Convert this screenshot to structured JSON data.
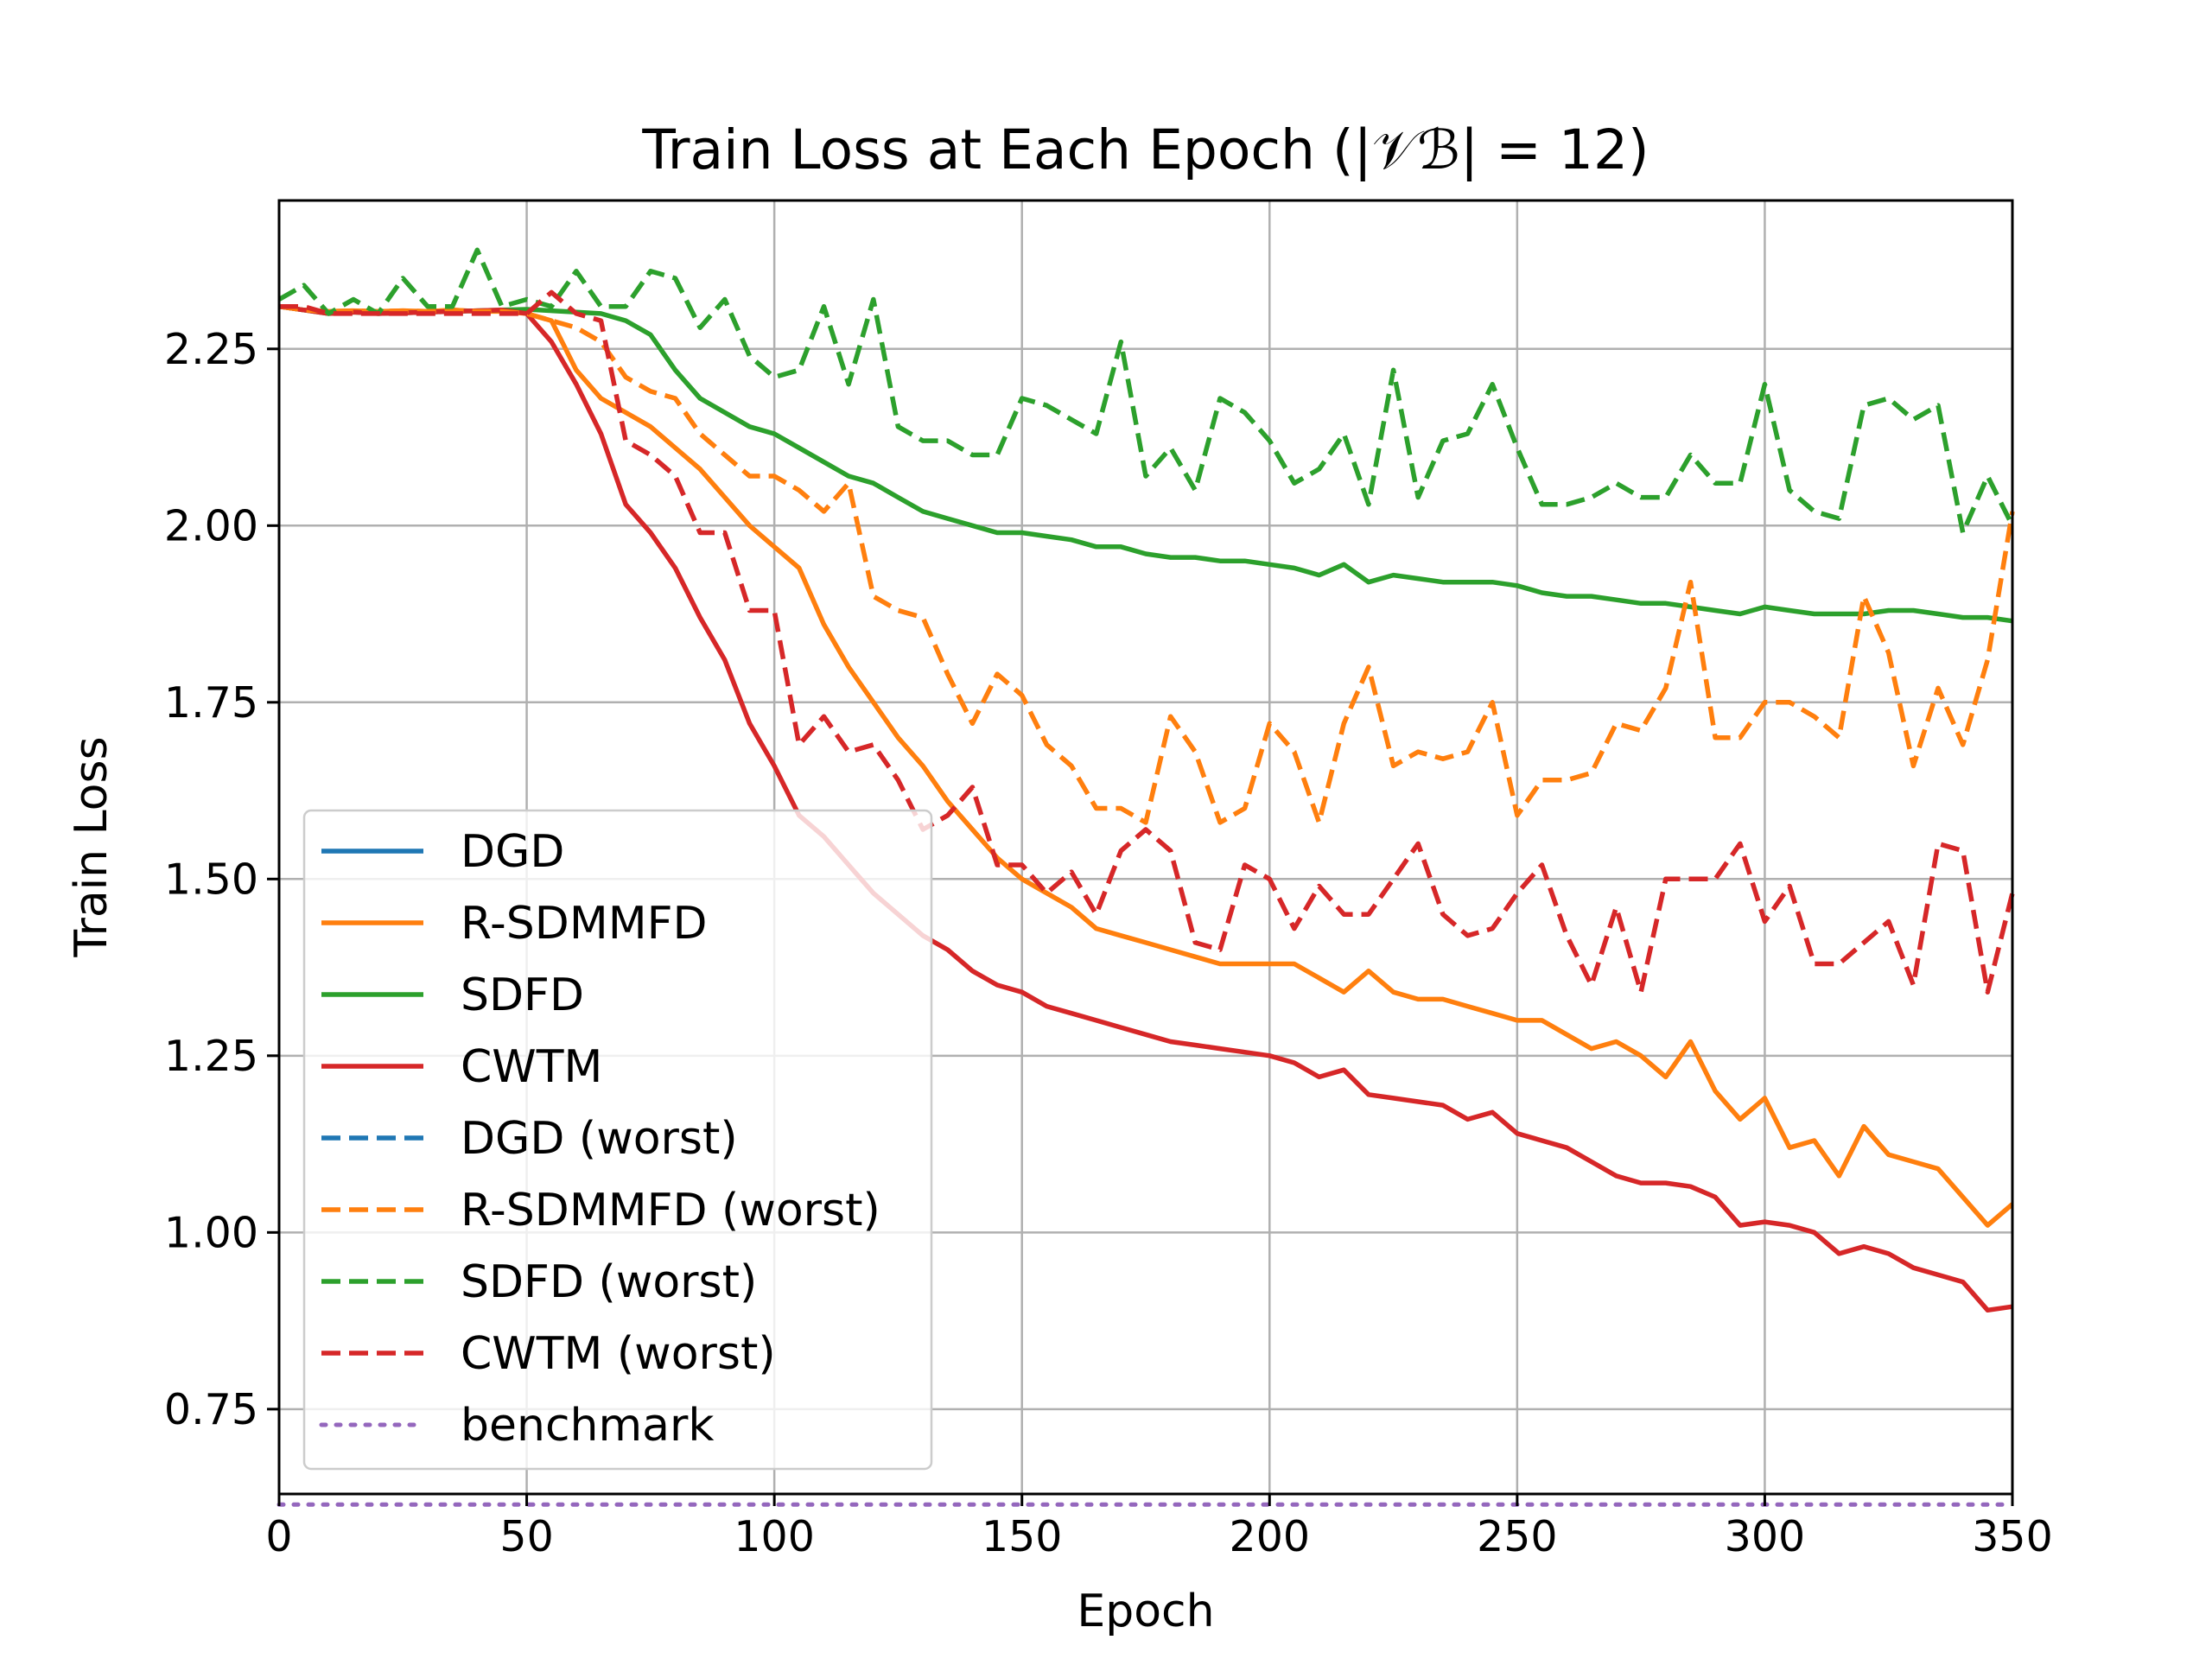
{
  "chart_data": {
    "type": "line",
    "title": "Train Loss at Each Epoch (|𝒱ℬ| = 12)",
    "xlabel": "Epoch",
    "ylabel": "Train Loss",
    "xlim": [
      0,
      350
    ],
    "ylim": [
      0.63,
      2.46
    ],
    "xticks": [
      0,
      50,
      100,
      150,
      200,
      250,
      300,
      350
    ],
    "yticks": [
      0.75,
      1.0,
      1.25,
      1.5,
      1.75,
      2.0,
      2.25
    ],
    "xtick_labels": [
      "0",
      "50",
      "100",
      "150",
      "200",
      "250",
      "300",
      "350"
    ],
    "ytick_labels": [
      "0.75",
      "1.00",
      "1.25",
      "1.50",
      "1.75",
      "2.00",
      "2.25"
    ],
    "grid": true,
    "legend_position": "lower-left",
    "series": [
      {
        "name": "DGD",
        "color": "#1f77b4",
        "style": "solid",
        "x": [],
        "y": []
      },
      {
        "name": "R-SDMMFD",
        "color": "#ff7f0e",
        "style": "solid",
        "x": [
          0,
          5,
          10,
          15,
          20,
          25,
          30,
          35,
          40,
          45,
          50,
          55,
          60,
          65,
          70,
          75,
          80,
          85,
          90,
          95,
          100,
          105,
          110,
          115,
          120,
          125,
          130,
          135,
          140,
          145,
          150,
          155,
          160,
          165,
          170,
          175,
          180,
          185,
          190,
          195,
          200,
          205,
          210,
          215,
          220,
          225,
          230,
          235,
          240,
          245,
          250,
          255,
          260,
          265,
          270,
          275,
          280,
          285,
          290,
          295,
          300,
          305,
          310,
          315,
          320,
          325,
          330,
          335,
          340,
          345,
          350
        ],
        "y": [
          2.31,
          2.305,
          2.303,
          2.304,
          2.303,
          2.304,
          2.303,
          2.305,
          2.303,
          2.303,
          2.3,
          2.29,
          2.22,
          2.18,
          2.16,
          2.14,
          2.11,
          2.08,
          2.04,
          2.0,
          1.97,
          1.94,
          1.86,
          1.8,
          1.75,
          1.7,
          1.66,
          1.61,
          1.57,
          1.53,
          1.5,
          1.48,
          1.46,
          1.43,
          1.42,
          1.41,
          1.4,
          1.39,
          1.38,
          1.38,
          1.38,
          1.38,
          1.36,
          1.34,
          1.37,
          1.34,
          1.33,
          1.33,
          1.32,
          1.31,
          1.3,
          1.3,
          1.28,
          1.26,
          1.27,
          1.25,
          1.22,
          1.27,
          1.2,
          1.16,
          1.19,
          1.12,
          1.13,
          1.08,
          1.15,
          1.11,
          1.1,
          1.09,
          1.05,
          1.01,
          1.04
        ]
      },
      {
        "name": "SDFD",
        "color": "#2ca02c",
        "style": "solid",
        "x": [
          0,
          5,
          10,
          15,
          20,
          25,
          30,
          35,
          40,
          45,
          50,
          55,
          60,
          65,
          70,
          75,
          80,
          85,
          90,
          95,
          100,
          105,
          110,
          115,
          120,
          125,
          130,
          135,
          140,
          145,
          150,
          155,
          160,
          165,
          170,
          175,
          180,
          185,
          190,
          195,
          200,
          205,
          210,
          215,
          220,
          225,
          230,
          235,
          240,
          245,
          250,
          255,
          260,
          265,
          270,
          275,
          280,
          285,
          290,
          295,
          300,
          305,
          310,
          315,
          320,
          325,
          330,
          335,
          340,
          345,
          350
        ],
        "y": [
          2.31,
          2.305,
          2.3,
          2.302,
          2.3,
          2.301,
          2.302,
          2.303,
          2.304,
          2.305,
          2.306,
          2.304,
          2.302,
          2.3,
          2.29,
          2.27,
          2.22,
          2.18,
          2.16,
          2.14,
          2.13,
          2.11,
          2.09,
          2.07,
          2.06,
          2.04,
          2.02,
          2.01,
          2.0,
          1.99,
          1.99,
          1.985,
          1.98,
          1.97,
          1.97,
          1.96,
          1.955,
          1.955,
          1.95,
          1.95,
          1.945,
          1.94,
          1.93,
          1.945,
          1.92,
          1.93,
          1.925,
          1.92,
          1.92,
          1.92,
          1.915,
          1.905,
          1.9,
          1.9,
          1.895,
          1.89,
          1.89,
          1.885,
          1.88,
          1.875,
          1.885,
          1.88,
          1.875,
          1.875,
          1.875,
          1.88,
          1.88,
          1.875,
          1.87,
          1.87,
          1.865
        ]
      },
      {
        "name": "CWTM",
        "color": "#d62728",
        "style": "solid",
        "x": [
          0,
          5,
          10,
          15,
          20,
          25,
          30,
          35,
          40,
          45,
          50,
          55,
          60,
          65,
          70,
          75,
          80,
          85,
          90,
          95,
          100,
          105,
          110,
          115,
          120,
          125,
          130,
          135,
          140,
          145,
          150,
          155,
          160,
          165,
          170,
          175,
          180,
          185,
          190,
          195,
          200,
          205,
          210,
          215,
          220,
          225,
          230,
          235,
          240,
          245,
          250,
          255,
          260,
          265,
          270,
          275,
          280,
          285,
          290,
          295,
          300,
          305,
          310,
          315,
          320,
          325,
          330,
          335,
          340,
          345,
          350
        ],
        "y": [
          2.31,
          2.305,
          2.3,
          2.302,
          2.3,
          2.301,
          2.302,
          2.303,
          2.304,
          2.305,
          2.3,
          2.26,
          2.2,
          2.13,
          2.03,
          1.99,
          1.94,
          1.87,
          1.81,
          1.72,
          1.66,
          1.59,
          1.56,
          1.52,
          1.48,
          1.45,
          1.42,
          1.4,
          1.37,
          1.35,
          1.34,
          1.32,
          1.31,
          1.3,
          1.29,
          1.28,
          1.27,
          1.265,
          1.26,
          1.255,
          1.25,
          1.24,
          1.22,
          1.23,
          1.195,
          1.19,
          1.185,
          1.18,
          1.16,
          1.17,
          1.14,
          1.13,
          1.12,
          1.1,
          1.08,
          1.07,
          1.07,
          1.065,
          1.05,
          1.01,
          1.015,
          1.01,
          1.0,
          0.97,
          0.98,
          0.97,
          0.95,
          0.94,
          0.93,
          0.89,
          0.895
        ]
      },
      {
        "name": "DGD (worst)",
        "color": "#1f77b4",
        "style": "dashed",
        "x": [],
        "y": []
      },
      {
        "name": "R-SDMMFD (worst)",
        "color": "#ff7f0e",
        "style": "dashed",
        "x": [
          0,
          5,
          10,
          15,
          20,
          25,
          30,
          35,
          40,
          45,
          50,
          55,
          60,
          65,
          70,
          75,
          80,
          85,
          90,
          95,
          100,
          105,
          110,
          115,
          120,
          125,
          130,
          135,
          140,
          145,
          150,
          155,
          160,
          165,
          170,
          175,
          180,
          185,
          190,
          195,
          200,
          205,
          210,
          215,
          220,
          225,
          230,
          235,
          240,
          245,
          250,
          255,
          260,
          265,
          270,
          275,
          280,
          285,
          290,
          295,
          300,
          305,
          310,
          315,
          320,
          325,
          330,
          335,
          340,
          345,
          350
        ],
        "y": [
          2.31,
          2.305,
          2.303,
          2.304,
          2.303,
          2.304,
          2.303,
          2.305,
          2.303,
          2.303,
          2.3,
          2.29,
          2.28,
          2.26,
          2.21,
          2.19,
          2.18,
          2.13,
          2.1,
          2.07,
          2.07,
          2.05,
          2.02,
          2.06,
          1.9,
          1.88,
          1.87,
          1.79,
          1.72,
          1.79,
          1.76,
          1.69,
          1.66,
          1.6,
          1.6,
          1.58,
          1.73,
          1.68,
          1.58,
          1.6,
          1.72,
          1.68,
          1.58,
          1.72,
          1.8,
          1.66,
          1.68,
          1.67,
          1.68,
          1.75,
          1.59,
          1.64,
          1.64,
          1.65,
          1.72,
          1.71,
          1.77,
          1.92,
          1.7,
          1.7,
          1.75,
          1.75,
          1.73,
          1.7,
          1.9,
          1.82,
          1.66,
          1.77,
          1.69,
          1.81,
          2.02
        ]
      },
      {
        "name": "SDFD (worst)",
        "color": "#2ca02c",
        "style": "dashed",
        "x": [
          0,
          5,
          10,
          15,
          20,
          25,
          30,
          35,
          40,
          45,
          50,
          55,
          60,
          65,
          70,
          75,
          80,
          85,
          90,
          95,
          100,
          105,
          110,
          115,
          120,
          125,
          130,
          135,
          140,
          145,
          150,
          155,
          160,
          165,
          170,
          175,
          180,
          185,
          190,
          195,
          200,
          205,
          210,
          215,
          220,
          225,
          230,
          235,
          240,
          245,
          250,
          255,
          260,
          265,
          270,
          275,
          280,
          285,
          290,
          295,
          300,
          305,
          310,
          315,
          320,
          325,
          330,
          335,
          340,
          345,
          350
        ],
        "y": [
          2.32,
          2.34,
          2.3,
          2.32,
          2.3,
          2.35,
          2.31,
          2.31,
          2.39,
          2.31,
          2.32,
          2.31,
          2.36,
          2.31,
          2.31,
          2.36,
          2.35,
          2.28,
          2.32,
          2.24,
          2.21,
          2.22,
          2.31,
          2.2,
          2.32,
          2.14,
          2.12,
          2.12,
          2.1,
          2.1,
          2.18,
          2.17,
          2.15,
          2.13,
          2.26,
          2.07,
          2.11,
          2.05,
          2.18,
          2.16,
          2.12,
          2.06,
          2.08,
          2.13,
          2.03,
          2.22,
          2.04,
          2.12,
          2.13,
          2.2,
          2.11,
          2.03,
          2.03,
          2.04,
          2.06,
          2.04,
          2.04,
          2.1,
          2.06,
          2.06,
          2.2,
          2.05,
          2.02,
          2.01,
          2.17,
          2.18,
          2.15,
          2.17,
          1.99,
          2.07,
          2.0
        ]
      },
      {
        "name": "CWTM (worst)",
        "color": "#d62728",
        "style": "dashed",
        "x": [
          0,
          5,
          10,
          15,
          20,
          25,
          30,
          35,
          40,
          45,
          50,
          55,
          60,
          65,
          70,
          75,
          80,
          85,
          90,
          95,
          100,
          105,
          110,
          115,
          120,
          125,
          130,
          135,
          140,
          145,
          150,
          155,
          160,
          165,
          170,
          175,
          180,
          185,
          190,
          195,
          200,
          205,
          210,
          215,
          220,
          225,
          230,
          235,
          240,
          245,
          250,
          255,
          260,
          265,
          270,
          275,
          280,
          285,
          290,
          295,
          300,
          305,
          310,
          315,
          320,
          325,
          330,
          335,
          340,
          345,
          350
        ],
        "y": [
          2.31,
          2.31,
          2.3,
          2.3,
          2.3,
          2.3,
          2.3,
          2.3,
          2.3,
          2.3,
          2.3,
          2.33,
          2.3,
          2.29,
          2.12,
          2.1,
          2.07,
          1.99,
          1.99,
          1.88,
          1.88,
          1.69,
          1.73,
          1.68,
          1.69,
          1.64,
          1.57,
          1.59,
          1.63,
          1.52,
          1.52,
          1.48,
          1.51,
          1.45,
          1.54,
          1.57,
          1.54,
          1.41,
          1.4,
          1.52,
          1.5,
          1.43,
          1.49,
          1.45,
          1.45,
          1.5,
          1.55,
          1.45,
          1.42,
          1.43,
          1.48,
          1.52,
          1.42,
          1.35,
          1.46,
          1.34,
          1.5,
          1.5,
          1.5,
          1.55,
          1.44,
          1.49,
          1.38,
          1.38,
          1.41,
          1.44,
          1.35,
          1.55,
          1.54,
          1.34,
          1.48
        ]
      },
      {
        "name": "benchmark",
        "color": "#9467bd",
        "style": "dotted",
        "x": [
          0,
          350
        ],
        "y": [
          0.615,
          0.615
        ]
      }
    ]
  }
}
